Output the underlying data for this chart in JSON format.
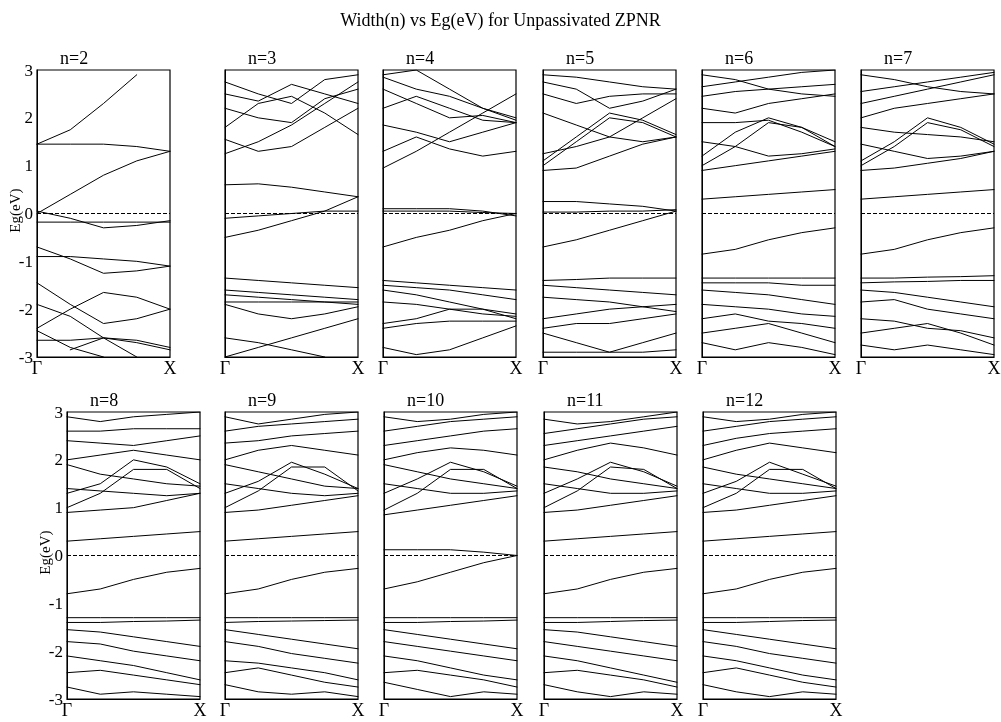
{
  "chart_data": [
    {
      "type": "line",
      "title": "n=2",
      "ylabel": "Eg(eV)",
      "annotations": [
        "Width(n) vs Eg(eV) for Unpassivated ZPNR"
      ],
      "categories": [
        "Γ",
        null,
        null,
        null,
        "X"
      ],
      "ylim": [
        -3,
        3
      ],
      "yticks": [
        -3,
        -2,
        -1,
        0,
        1,
        2,
        3
      ],
      "marker": "none",
      "line_style": "solid",
      "ref_lines": [
        {
          "axis": "y",
          "value": 0,
          "label": null,
          "line_style": "dashed",
          "color": "#000000"
        }
      ],
      "series": [
        {
          "color": "#000000",
          "values": [
            1.45,
            1.75,
            2.3,
            2.9,
            null
          ]
        },
        {
          "color": "#000000",
          "values": [
            1.45,
            1.45,
            1.45,
            1.4,
            1.3
          ]
        },
        {
          "color": "#000000",
          "values": [
            0,
            0.4,
            0.8,
            1.1,
            1.3
          ]
        },
        {
          "color": "#000000",
          "values": [
            0.05,
            -0.1,
            -0.3,
            -0.25,
            -0.15
          ]
        },
        {
          "color": "#000000",
          "values": [
            -0.18,
            -0.18,
            -0.18,
            -0.18,
            -0.18
          ]
        },
        {
          "color": "#000000",
          "values": [
            -0.7,
            -0.95,
            -1.25,
            -1.2,
            -1.1
          ]
        },
        {
          "color": "#000000",
          "values": [
            -0.9,
            -0.9,
            -0.95,
            -1.0,
            -1.1
          ]
        },
        {
          "color": "#000000",
          "values": [
            -1.45,
            -1.9,
            -2.3,
            -2.2,
            -2.0
          ]
        },
        {
          "color": "#000000",
          "values": [
            -2.4,
            -2.0,
            -1.65,
            -1.75,
            -2.0
          ]
        },
        {
          "color": "#000000",
          "values": [
            -1.9,
            -2.15,
            -2.6,
            -3,
            null
          ]
        },
        {
          "color": "#000000",
          "values": [
            -2.45,
            -2.8,
            -3,
            null,
            null
          ]
        },
        {
          "color": "#000000",
          "values": [
            -2.65,
            -2.65,
            -2.6,
            -2.7,
            -2.85
          ]
        },
        {
          "color": "#000000",
          "values": [
            null,
            -2.85,
            -2.6,
            -2.65,
            -2.8
          ]
        }
      ]
    },
    {
      "type": "line",
      "title": "n=3",
      "categories": [
        "Γ",
        null,
        null,
        null,
        "X"
      ],
      "ylim": [
        -3,
        3
      ],
      "yticks": [
        -3,
        -2,
        -1,
        0,
        1,
        2,
        3
      ],
      "tick_labels": "x",
      "marker": "none",
      "line_style": "solid",
      "ref_lines": [
        {
          "axis": "y",
          "value": 0,
          "label": null,
          "line_style": "dashed",
          "color": "#000000"
        }
      ],
      "series": [
        {
          "color": "#000000",
          "values": [
            1.25,
            1.5,
            1.85,
            2.3,
            2.75
          ]
        },
        {
          "color": "#000000",
          "values": [
            1.55,
            1.3,
            1.4,
            1.8,
            2.2
          ]
        },
        {
          "color": "#000000",
          "values": [
            1.8,
            2.3,
            2.45,
            2.1,
            1.65
          ]
        },
        {
          "color": "#000000",
          "values": [
            2.2,
            2.0,
            1.9,
            2.4,
            2.6
          ]
        },
        {
          "color": "#000000",
          "values": [
            2.5,
            2.35,
            2.7,
            2.5,
            2.3
          ]
        },
        {
          "color": "#000000",
          "values": [
            2.75,
            2.5,
            2.3,
            2.8,
            2.9
          ]
        },
        {
          "color": "#000000",
          "values": [
            0.6,
            0.62,
            0.55,
            0.45,
            0.35
          ]
        },
        {
          "color": "#000000",
          "values": [
            -0.1,
            -0.05,
            0.0,
            0.05,
            0.05
          ]
        },
        {
          "color": "#000000",
          "values": [
            -0.5,
            -0.35,
            -0.15,
            0.05,
            0.35
          ]
        },
        {
          "color": "#000000",
          "values": [
            -1.35,
            -1.4,
            -1.45,
            -1.5,
            -1.55
          ]
        },
        {
          "color": "#000000",
          "values": [
            -1.6,
            -1.65,
            -1.7,
            -1.75,
            -1.8
          ]
        },
        {
          "color": "#000000",
          "values": [
            -1.7,
            -1.75,
            -1.8,
            -1.85,
            -1.9
          ]
        },
        {
          "color": "#000000",
          "values": [
            -1.85,
            -1.85,
            -1.85,
            -1.85,
            -1.85
          ]
        },
        {
          "color": "#000000",
          "values": [
            -1.9,
            -2.1,
            -2.2,
            -2.1,
            -1.95
          ]
        },
        {
          "color": "#000000",
          "values": [
            -2.6,
            -2.7,
            -2.85,
            -3,
            null
          ]
        },
        {
          "color": "#000000",
          "values": [
            -3,
            -2.8,
            -2.6,
            -2.4,
            -2.2
          ]
        }
      ]
    },
    {
      "type": "line",
      "title": "n=4",
      "categories": [
        "Γ",
        null,
        null,
        null,
        "X"
      ],
      "ylim": [
        -3,
        3
      ],
      "yticks": [
        -3,
        -2,
        -1,
        0,
        1,
        2,
        3
      ],
      "tick_labels": "x",
      "marker": "none",
      "line_style": "solid",
      "ref_lines": [
        {
          "axis": "y",
          "value": 0,
          "label": null,
          "line_style": "dashed",
          "color": "#000000"
        }
      ],
      "series": [
        {
          "color": "#000000",
          "values": [
            0.95,
            1.3,
            1.7,
            2.1,
            2.5
          ]
        },
        {
          "color": "#000000",
          "values": [
            1.3,
            1.6,
            1.35,
            1.2,
            1.3
          ]
        },
        {
          "color": "#000000",
          "values": [
            1.85,
            1.7,
            1.5,
            1.7,
            1.9
          ]
        },
        {
          "color": "#000000",
          "values": [
            2.2,
            2.45,
            2.2,
            1.95,
            1.9
          ]
        },
        {
          "color": "#000000",
          "values": [
            2.6,
            2.3,
            2.0,
            2.05,
            1.9
          ]
        },
        {
          "color": "#000000",
          "values": [
            2.85,
            2.6,
            2.45,
            2.2,
            1.95
          ]
        },
        {
          "color": "#000000",
          "values": [
            2.9,
            3,
            2.6,
            2.2,
            2.0
          ]
        },
        {
          "color": "#000000",
          "values": [
            0.1,
            0.1,
            0.1,
            0.05,
            -0.05
          ]
        },
        {
          "color": "#000000",
          "values": [
            0.05,
            0.05,
            0.05,
            0.02,
            0
          ]
        },
        {
          "color": "#000000",
          "values": [
            -0.7,
            -0.5,
            -0.35,
            -0.15,
            0
          ]
        },
        {
          "color": "#000000",
          "values": [
            -1.4,
            -1.45,
            -1.5,
            -1.55,
            -1.6
          ]
        },
        {
          "color": "#000000",
          "values": [
            -1.5,
            -1.55,
            -1.6,
            -1.7,
            -1.8
          ]
        },
        {
          "color": "#000000",
          "values": [
            -1.6,
            -1.7,
            -1.85,
            -2.0,
            -2.1
          ]
        },
        {
          "color": "#000000",
          "values": [
            -1.85,
            -1.9,
            -2.0,
            -2.1,
            -2.15
          ]
        },
        {
          "color": "#000000",
          "values": [
            -2.3,
            -2.2,
            -2.0,
            -2.0,
            -2.2
          ]
        },
        {
          "color": "#000000",
          "values": [
            -2.4,
            -2.3,
            -2.25,
            -2.25,
            -2.25
          ]
        },
        {
          "color": "#000000",
          "values": [
            -2.8,
            -2.95,
            -2.85,
            -2.6,
            -2.35
          ]
        }
      ]
    },
    {
      "type": "line",
      "title": "n=5",
      "categories": [
        "Γ",
        null,
        null,
        null,
        "X"
      ],
      "ylim": [
        -3,
        3
      ],
      "yticks": [
        -3,
        -2,
        -1,
        0,
        1,
        2,
        3
      ],
      "tick_labels": "x",
      "marker": "none",
      "line_style": "solid",
      "ref_lines": [
        {
          "axis": "y",
          "value": 0,
          "label": null,
          "line_style": "dashed",
          "color": "#000000"
        }
      ],
      "series": [
        {
          "color": "#000000",
          "values": [
            0.9,
            0.95,
            1.2,
            1.45,
            1.6
          ]
        },
        {
          "color": "#000000",
          "values": [
            1.0,
            1.5,
            2.0,
            1.9,
            1.6
          ]
        },
        {
          "color": "#000000",
          "values": [
            1.1,
            1.6,
            2.1,
            1.95,
            1.65
          ]
        },
        {
          "color": "#000000",
          "values": [
            1.25,
            1.4,
            1.6,
            2.0,
            2.4
          ]
        },
        {
          "color": "#000000",
          "values": [
            2.1,
            1.85,
            1.6,
            1.5,
            1.6
          ]
        },
        {
          "color": "#000000",
          "values": [
            2.5,
            2.3,
            2.45,
            2.5,
            2.5
          ]
        },
        {
          "color": "#000000",
          "values": [
            2.75,
            2.6,
            2.2,
            2.35,
            2.6
          ]
        },
        {
          "color": "#000000",
          "values": [
            2.9,
            2.85,
            2.75,
            2.65,
            2.6
          ]
        },
        {
          "color": "#000000",
          "values": [
            0.25,
            0.25,
            0.2,
            0.15,
            0.05
          ]
        },
        {
          "color": "#000000",
          "values": [
            0.03,
            0.03,
            0.05,
            0.05,
            0.08
          ]
        },
        {
          "color": "#000000",
          "values": [
            -0.7,
            -0.55,
            -0.35,
            -0.15,
            0.05
          ]
        },
        {
          "color": "#000000",
          "values": [
            -1.4,
            -1.38,
            -1.35,
            -1.35,
            -1.35
          ]
        },
        {
          "color": "#000000",
          "values": [
            -1.5,
            -1.55,
            -1.6,
            -1.65,
            -1.7
          ]
        },
        {
          "color": "#000000",
          "values": [
            -1.75,
            -1.8,
            -1.85,
            -1.95,
            -2.05
          ]
        },
        {
          "color": "#000000",
          "values": [
            -2.2,
            -2.1,
            -2.0,
            -1.95,
            -1.9
          ]
        },
        {
          "color": "#000000",
          "values": [
            -2.4,
            -2.3,
            -2.3,
            -2.2,
            -2.1
          ]
        },
        {
          "color": "#000000",
          "values": [
            -2.5,
            -2.7,
            -2.9,
            -2.7,
            -2.5
          ]
        },
        {
          "color": "#000000",
          "values": [
            -2.9,
            -2.9,
            -2.9,
            -2.9,
            -2.85
          ]
        }
      ]
    },
    {
      "type": "line",
      "title": "n=6",
      "categories": [
        "Γ",
        null,
        null,
        null,
        "X"
      ],
      "ylim": [
        -3,
        3
      ],
      "yticks": [
        -3,
        -2,
        -1,
        0,
        1,
        2,
        3
      ],
      "tick_labels": "x",
      "marker": "none",
      "line_style": "solid",
      "ref_lines": [
        {
          "axis": "y",
          "value": 0,
          "label": null,
          "line_style": "dashed",
          "color": "#000000"
        }
      ],
      "series": [
        {
          "color": "#000000",
          "values": [
            0.9,
            1.0,
            1.1,
            1.2,
            1.3
          ]
        },
        {
          "color": "#000000",
          "values": [
            1.0,
            1.4,
            1.9,
            1.8,
            1.4
          ]
        },
        {
          "color": "#000000",
          "values": [
            1.2,
            1.7,
            2.0,
            1.8,
            1.5
          ]
        },
        {
          "color": "#000000",
          "values": [
            1.5,
            1.4,
            1.2,
            1.25,
            1.35
          ]
        },
        {
          "color": "#000000",
          "values": [
            1.9,
            1.9,
            1.95,
            1.7,
            1.4
          ]
        },
        {
          "color": "#000000",
          "values": [
            2.2,
            2.1,
            2.3,
            2.4,
            2.5
          ]
        },
        {
          "color": "#000000",
          "values": [
            2.45,
            2.55,
            2.6,
            2.65,
            2.7
          ]
        },
        {
          "color": "#000000",
          "values": [
            2.65,
            2.75,
            2.85,
            2.95,
            3
          ]
        },
        {
          "color": "#000000",
          "values": [
            2.9,
            2.8,
            2.6,
            2.5,
            2.45
          ]
        },
        {
          "color": "#000000",
          "values": [
            0.3,
            0.35,
            0.4,
            0.45,
            0.5
          ]
        },
        {
          "color": "#000000",
          "values": [
            -0.85,
            -0.75,
            -0.55,
            -0.4,
            -0.3
          ]
        },
        {
          "color": "#000000",
          "values": [
            -1.35,
            -1.35,
            -1.35,
            -1.35,
            -1.35
          ]
        },
        {
          "color": "#000000",
          "values": [
            -1.45,
            -1.45,
            -1.45,
            -1.5,
            -1.5
          ]
        },
        {
          "color": "#000000",
          "values": [
            -1.6,
            -1.65,
            -1.7,
            -1.8,
            -1.9
          ]
        },
        {
          "color": "#000000",
          "values": [
            -1.9,
            -1.95,
            -2.0,
            -2.1,
            -2.15
          ]
        },
        {
          "color": "#000000",
          "values": [
            -2.2,
            -2.1,
            -2.25,
            -2.3,
            -2.4
          ]
        },
        {
          "color": "#000000",
          "values": [
            -2.5,
            -2.4,
            -2.3,
            -2.5,
            -2.7
          ]
        },
        {
          "color": "#000000",
          "values": [
            -2.7,
            -2.85,
            -2.7,
            -2.8,
            -2.95
          ]
        }
      ]
    },
    {
      "type": "line",
      "title": "n=7",
      "categories": [
        "Γ",
        null,
        null,
        null,
        "X"
      ],
      "ylim": [
        -3,
        3
      ],
      "yticks": [
        -3,
        -2,
        -1,
        0,
        1,
        2,
        3
      ],
      "tick_labels": "x",
      "marker": "none",
      "line_style": "solid",
      "ref_lines": [
        {
          "axis": "y",
          "value": 0,
          "label": null,
          "line_style": "dashed",
          "color": "#000000"
        }
      ],
      "series": [
        {
          "color": "#000000",
          "values": [
            0.9,
            0.95,
            1.05,
            1.15,
            1.3
          ]
        },
        {
          "color": "#000000",
          "values": [
            1.0,
            1.4,
            1.9,
            1.75,
            1.4
          ]
        },
        {
          "color": "#000000",
          "values": [
            1.1,
            1.5,
            2.0,
            1.8,
            1.45
          ]
        },
        {
          "color": "#000000",
          "values": [
            1.45,
            1.3,
            1.15,
            1.2,
            1.3
          ]
        },
        {
          "color": "#000000",
          "values": [
            1.8,
            1.7,
            1.65,
            1.6,
            1.5
          ]
        },
        {
          "color": "#000000",
          "values": [
            2.0,
            2.2,
            2.3,
            2.4,
            2.5
          ]
        },
        {
          "color": "#000000",
          "values": [
            2.3,
            2.45,
            2.6,
            2.75,
            2.9
          ]
        },
        {
          "color": "#000000",
          "values": [
            2.55,
            2.65,
            2.75,
            2.85,
            2.95
          ]
        },
        {
          "color": "#000000",
          "values": [
            2.9,
            2.8,
            2.65,
            2.55,
            2.5
          ]
        },
        {
          "color": "#000000",
          "values": [
            0.3,
            0.35,
            0.4,
            0.45,
            0.5
          ]
        },
        {
          "color": "#000000",
          "values": [
            -0.85,
            -0.75,
            -0.55,
            -0.4,
            -0.3
          ]
        },
        {
          "color": "#000000",
          "values": [
            -1.35,
            -1.35,
            -1.33,
            -1.32,
            -1.3
          ]
        },
        {
          "color": "#000000",
          "values": [
            -1.45,
            -1.43,
            -1.42,
            -1.4,
            -1.4
          ]
        },
        {
          "color": "#000000",
          "values": [
            -1.6,
            -1.65,
            -1.75,
            -1.85,
            -1.95
          ]
        },
        {
          "color": "#000000",
          "values": [
            -1.85,
            -1.8,
            -2.0,
            -2.1,
            -2.2
          ]
        },
        {
          "color": "#000000",
          "values": [
            -2.2,
            -2.25,
            -2.4,
            -2.45,
            -2.6
          ]
        },
        {
          "color": "#000000",
          "values": [
            -2.5,
            -2.4,
            -2.3,
            -2.5,
            -2.75
          ]
        },
        {
          "color": "#000000",
          "values": [
            -2.75,
            -2.85,
            -2.75,
            -2.85,
            -2.95
          ]
        }
      ]
    },
    {
      "type": "line",
      "title": "n=8",
      "ylabel": "Eg(eV)",
      "categories": [
        "Γ",
        null,
        null,
        null,
        "X"
      ],
      "ylim": [
        -3,
        3
      ],
      "yticks": [
        -3,
        -2,
        -1,
        0,
        1,
        2,
        3
      ],
      "marker": "none",
      "line_style": "solid",
      "ref_lines": [
        {
          "axis": "y",
          "value": 0,
          "label": null,
          "line_style": "dashed",
          "color": "#000000"
        }
      ],
      "series": [
        {
          "color": "#000000",
          "values": [
            0.9,
            0.95,
            1.0,
            1.15,
            1.3
          ]
        },
        {
          "color": "#000000",
          "values": [
            1.0,
            1.3,
            1.8,
            1.8,
            1.4
          ]
        },
        {
          "color": "#000000",
          "values": [
            1.3,
            1.5,
            2.0,
            1.85,
            1.5
          ]
        },
        {
          "color": "#000000",
          "values": [
            1.4,
            1.35,
            1.3,
            1.25,
            1.3
          ]
        },
        {
          "color": "#000000",
          "values": [
            1.9,
            1.7,
            1.6,
            1.5,
            1.45
          ]
        },
        {
          "color": "#000000",
          "values": [
            2.0,
            2.1,
            2.2,
            2.1,
            2.0
          ]
        },
        {
          "color": "#000000",
          "values": [
            2.4,
            2.35,
            2.3,
            2.4,
            2.5
          ]
        },
        {
          "color": "#000000",
          "values": [
            2.6,
            2.6,
            2.65,
            2.65,
            2.65
          ]
        },
        {
          "color": "#000000",
          "values": [
            2.9,
            2.8,
            2.9,
            2.95,
            3
          ]
        },
        {
          "color": "#000000",
          "values": [
            0.3,
            0.35,
            0.4,
            0.45,
            0.5
          ]
        },
        {
          "color": "#000000",
          "values": [
            -0.8,
            -0.7,
            -0.5,
            -0.35,
            -0.27
          ]
        },
        {
          "color": "#000000",
          "values": [
            -1.3,
            -1.3,
            -1.3,
            -1.3,
            -1.3
          ]
        },
        {
          "color": "#000000",
          "values": [
            -1.4,
            -1.4,
            -1.38,
            -1.37,
            -1.35
          ]
        },
        {
          "color": "#000000",
          "values": [
            -1.55,
            -1.6,
            -1.7,
            -1.8,
            -1.9
          ]
        },
        {
          "color": "#000000",
          "values": [
            -1.8,
            -1.85,
            -2.0,
            -2.1,
            -2.2
          ]
        },
        {
          "color": "#000000",
          "values": [
            -2.1,
            -2.2,
            -2.3,
            -2.45,
            -2.6
          ]
        },
        {
          "color": "#000000",
          "values": [
            -2.45,
            -2.4,
            -2.5,
            -2.6,
            -2.7
          ]
        },
        {
          "color": "#000000",
          "values": [
            -2.75,
            -2.9,
            -2.85,
            -2.9,
            -2.95
          ]
        }
      ]
    },
    {
      "type": "line",
      "title": "n=9",
      "categories": [
        "Γ",
        null,
        null,
        null,
        "X"
      ],
      "ylim": [
        -3,
        3
      ],
      "yticks": [
        -3,
        -2,
        -1,
        0,
        1,
        2,
        3
      ],
      "tick_labels": "x",
      "marker": "none",
      "line_style": "solid",
      "ref_lines": [
        {
          "axis": "y",
          "value": 0,
          "label": null,
          "line_style": "dashed",
          "color": "#000000"
        }
      ],
      "series": [
        {
          "color": "#000000",
          "values": [
            0.9,
            0.95,
            1.05,
            1.15,
            1.25
          ]
        },
        {
          "color": "#000000",
          "values": [
            1.0,
            1.35,
            1.85,
            1.85,
            1.35
          ]
        },
        {
          "color": "#000000",
          "values": [
            1.3,
            1.55,
            1.95,
            1.7,
            1.4
          ]
        },
        {
          "color": "#000000",
          "values": [
            1.5,
            1.4,
            1.3,
            1.25,
            1.3
          ]
        },
        {
          "color": "#000000",
          "values": [
            1.9,
            1.75,
            1.6,
            1.45,
            1.4
          ]
        },
        {
          "color": "#000000",
          "values": [
            2.0,
            2.2,
            2.3,
            2.2,
            2.1
          ]
        },
        {
          "color": "#000000",
          "values": [
            2.35,
            2.4,
            2.5,
            2.55,
            2.6
          ]
        },
        {
          "color": "#000000",
          "values": [
            2.6,
            2.7,
            2.75,
            2.8,
            2.85
          ]
        },
        {
          "color": "#000000",
          "values": [
            2.9,
            2.75,
            2.85,
            2.95,
            3
          ]
        },
        {
          "color": "#000000",
          "values": [
            0.3,
            0.35,
            0.4,
            0.45,
            0.5
          ]
        },
        {
          "color": "#000000",
          "values": [
            -0.8,
            -0.7,
            -0.5,
            -0.35,
            -0.27
          ]
        },
        {
          "color": "#000000",
          "values": [
            -1.3,
            -1.3,
            -1.3,
            -1.3,
            -1.3
          ]
        },
        {
          "color": "#000000",
          "values": [
            -1.4,
            -1.38,
            -1.37,
            -1.36,
            -1.35
          ]
        },
        {
          "color": "#000000",
          "values": [
            -1.55,
            -1.65,
            -1.75,
            -1.85,
            -1.95
          ]
        },
        {
          "color": "#000000",
          "values": [
            -1.8,
            -1.9,
            -2.05,
            -2.15,
            -2.25
          ]
        },
        {
          "color": "#000000",
          "values": [
            -2.2,
            -2.25,
            -2.35,
            -2.45,
            -2.6
          ]
        },
        {
          "color": "#000000",
          "values": [
            -2.45,
            -2.35,
            -2.5,
            -2.65,
            -2.75
          ]
        },
        {
          "color": "#000000",
          "values": [
            -2.7,
            -2.85,
            -2.9,
            -2.85,
            -2.95
          ]
        }
      ]
    },
    {
      "type": "line",
      "title": "n=10",
      "categories": [
        "Γ",
        null,
        null,
        null,
        "X"
      ],
      "ylim": [
        -3,
        3
      ],
      "yticks": [
        -3,
        -2,
        -1,
        0,
        1,
        2,
        3
      ],
      "tick_labels": "x",
      "marker": "none",
      "line_style": "solid",
      "ref_lines": [
        {
          "axis": "y",
          "value": 0,
          "label": null,
          "line_style": "dashed",
          "color": "#000000"
        }
      ],
      "series": [
        {
          "color": "#000000",
          "values": [
            0.85,
            0.95,
            1.05,
            1.15,
            1.25
          ]
        },
        {
          "color": "#000000",
          "values": [
            0.95,
            1.3,
            1.8,
            1.8,
            1.4
          ]
        },
        {
          "color": "#000000",
          "values": [
            1.3,
            1.6,
            1.95,
            1.75,
            1.45
          ]
        },
        {
          "color": "#000000",
          "values": [
            1.5,
            1.4,
            1.3,
            1.3,
            1.35
          ]
        },
        {
          "color": "#000000",
          "values": [
            1.9,
            1.75,
            1.6,
            1.5,
            1.4
          ]
        },
        {
          "color": "#000000",
          "values": [
            2.0,
            2.15,
            2.25,
            2.2,
            2.1
          ]
        },
        {
          "color": "#000000",
          "values": [
            2.3,
            2.4,
            2.5,
            2.6,
            2.65
          ]
        },
        {
          "color": "#000000",
          "values": [
            2.6,
            2.7,
            2.8,
            2.85,
            2.9
          ]
        },
        {
          "color": "#000000",
          "values": [
            2.9,
            2.8,
            2.85,
            2.95,
            3
          ]
        },
        {
          "color": "#000000",
          "values": [
            0.12,
            0.12,
            0.12,
            0.07,
            0
          ]
        },
        {
          "color": "#000000",
          "values": [
            -0.7,
            -0.55,
            -0.35,
            -0.15,
            0
          ]
        },
        {
          "color": "#000000",
          "values": [
            -1.3,
            -1.3,
            -1.3,
            -1.3,
            -1.3
          ]
        },
        {
          "color": "#000000",
          "values": [
            -1.4,
            -1.4,
            -1.38,
            -1.37,
            -1.35
          ]
        },
        {
          "color": "#000000",
          "values": [
            -1.55,
            -1.65,
            -1.75,
            -1.85,
            -1.95
          ]
        },
        {
          "color": "#000000",
          "values": [
            -1.8,
            -1.9,
            -2.0,
            -2.1,
            -2.2
          ]
        },
        {
          "color": "#000000",
          "values": [
            -2.1,
            -2.2,
            -2.35,
            -2.5,
            -2.6
          ]
        },
        {
          "color": "#000000",
          "values": [
            -2.45,
            -2.4,
            -2.5,
            -2.6,
            -2.75
          ]
        },
        {
          "color": "#000000",
          "values": [
            -2.65,
            -2.8,
            -2.95,
            -2.85,
            -2.9
          ]
        }
      ]
    },
    {
      "type": "line",
      "title": "n=11",
      "categories": [
        "Γ",
        null,
        null,
        null,
        "X"
      ],
      "ylim": [
        -3,
        3
      ],
      "yticks": [
        -3,
        -2,
        -1,
        0,
        1,
        2,
        3
      ],
      "tick_labels": "x",
      "marker": "none",
      "line_style": "solid",
      "ref_lines": [
        {
          "axis": "y",
          "value": 0,
          "label": null,
          "line_style": "dashed",
          "color": "#000000"
        }
      ],
      "series": [
        {
          "color": "#000000",
          "values": [
            0.9,
            0.95,
            1.05,
            1.15,
            1.25
          ]
        },
        {
          "color": "#000000",
          "values": [
            1.0,
            1.35,
            1.85,
            1.8,
            1.4
          ]
        },
        {
          "color": "#000000",
          "values": [
            1.3,
            1.6,
            1.95,
            1.75,
            1.45
          ]
        },
        {
          "color": "#000000",
          "values": [
            1.5,
            1.4,
            1.3,
            1.3,
            1.35
          ]
        },
        {
          "color": "#000000",
          "values": [
            1.85,
            1.75,
            1.6,
            1.5,
            1.4
          ]
        },
        {
          "color": "#000000",
          "values": [
            2.0,
            2.2,
            2.35,
            2.25,
            2.1
          ]
        },
        {
          "color": "#000000",
          "values": [
            2.3,
            2.4,
            2.5,
            2.6,
            2.7
          ]
        },
        {
          "color": "#000000",
          "values": [
            2.55,
            2.65,
            2.75,
            2.85,
            2.9
          ]
        },
        {
          "color": "#000000",
          "values": [
            2.85,
            2.75,
            2.8,
            2.9,
            3
          ]
        },
        {
          "color": "#000000",
          "values": [
            0.3,
            0.35,
            0.4,
            0.45,
            0.5
          ]
        },
        {
          "color": "#000000",
          "values": [
            -0.8,
            -0.7,
            -0.5,
            -0.35,
            -0.27
          ]
        },
        {
          "color": "#000000",
          "values": [
            -1.3,
            -1.3,
            -1.3,
            -1.3,
            -1.3
          ]
        },
        {
          "color": "#000000",
          "values": [
            -1.4,
            -1.4,
            -1.38,
            -1.36,
            -1.35
          ]
        },
        {
          "color": "#000000",
          "values": [
            -1.55,
            -1.6,
            -1.7,
            -1.8,
            -1.9
          ]
        },
        {
          "color": "#000000",
          "values": [
            -1.8,
            -1.9,
            -2.0,
            -2.1,
            -2.2
          ]
        },
        {
          "color": "#000000",
          "values": [
            -2.1,
            -2.2,
            -2.35,
            -2.5,
            -2.65
          ]
        },
        {
          "color": "#000000",
          "values": [
            -2.45,
            -2.4,
            -2.5,
            -2.6,
            -2.75
          ]
        },
        {
          "color": "#000000",
          "values": [
            -2.7,
            -2.85,
            -2.95,
            -2.85,
            -2.9
          ]
        }
      ]
    },
    {
      "type": "line",
      "title": "n=12",
      "categories": [
        "Γ",
        null,
        null,
        null,
        "X"
      ],
      "ylim": [
        -3,
        3
      ],
      "yticks": [
        -3,
        -2,
        -1,
        0,
        1,
        2,
        3
      ],
      "tick_labels": "x",
      "marker": "none",
      "line_style": "solid",
      "ref_lines": [
        {
          "axis": "y",
          "value": 0,
          "label": null,
          "line_style": "dashed",
          "color": "#000000"
        }
      ],
      "series": [
        {
          "color": "#000000",
          "values": [
            0.9,
            0.95,
            1.05,
            1.15,
            1.25
          ]
        },
        {
          "color": "#000000",
          "values": [
            1.0,
            1.3,
            1.8,
            1.8,
            1.4
          ]
        },
        {
          "color": "#000000",
          "values": [
            1.3,
            1.55,
            1.95,
            1.7,
            1.45
          ]
        },
        {
          "color": "#000000",
          "values": [
            1.5,
            1.4,
            1.3,
            1.3,
            1.35
          ]
        },
        {
          "color": "#000000",
          "values": [
            1.85,
            1.7,
            1.6,
            1.5,
            1.4
          ]
        },
        {
          "color": "#000000",
          "values": [
            2.0,
            2.2,
            2.35,
            2.25,
            2.15
          ]
        },
        {
          "color": "#000000",
          "values": [
            2.3,
            2.45,
            2.55,
            2.6,
            2.65
          ]
        },
        {
          "color": "#000000",
          "values": [
            2.6,
            2.7,
            2.8,
            2.85,
            2.9
          ]
        },
        {
          "color": "#000000",
          "values": [
            2.9,
            2.8,
            2.85,
            2.95,
            3
          ]
        },
        {
          "color": "#000000",
          "values": [
            0.3,
            0.35,
            0.4,
            0.45,
            0.5
          ]
        },
        {
          "color": "#000000",
          "values": [
            -0.8,
            -0.7,
            -0.5,
            -0.35,
            -0.27
          ]
        },
        {
          "color": "#000000",
          "values": [
            -1.3,
            -1.3,
            -1.3,
            -1.3,
            -1.3
          ]
        },
        {
          "color": "#000000",
          "values": [
            -1.4,
            -1.4,
            -1.38,
            -1.36,
            -1.35
          ]
        },
        {
          "color": "#000000",
          "values": [
            -1.55,
            -1.65,
            -1.75,
            -1.85,
            -1.95
          ]
        },
        {
          "color": "#000000",
          "values": [
            -1.8,
            -1.9,
            -2.05,
            -2.15,
            -2.25
          ]
        },
        {
          "color": "#000000",
          "values": [
            -2.1,
            -2.2,
            -2.35,
            -2.5,
            -2.6
          ]
        },
        {
          "color": "#000000",
          "values": [
            -2.45,
            -2.35,
            -2.5,
            -2.65,
            -2.75
          ]
        },
        {
          "color": "#000000",
          "values": [
            -2.7,
            -2.85,
            -2.95,
            -2.85,
            -2.9
          ]
        }
      ]
    }
  ]
}
